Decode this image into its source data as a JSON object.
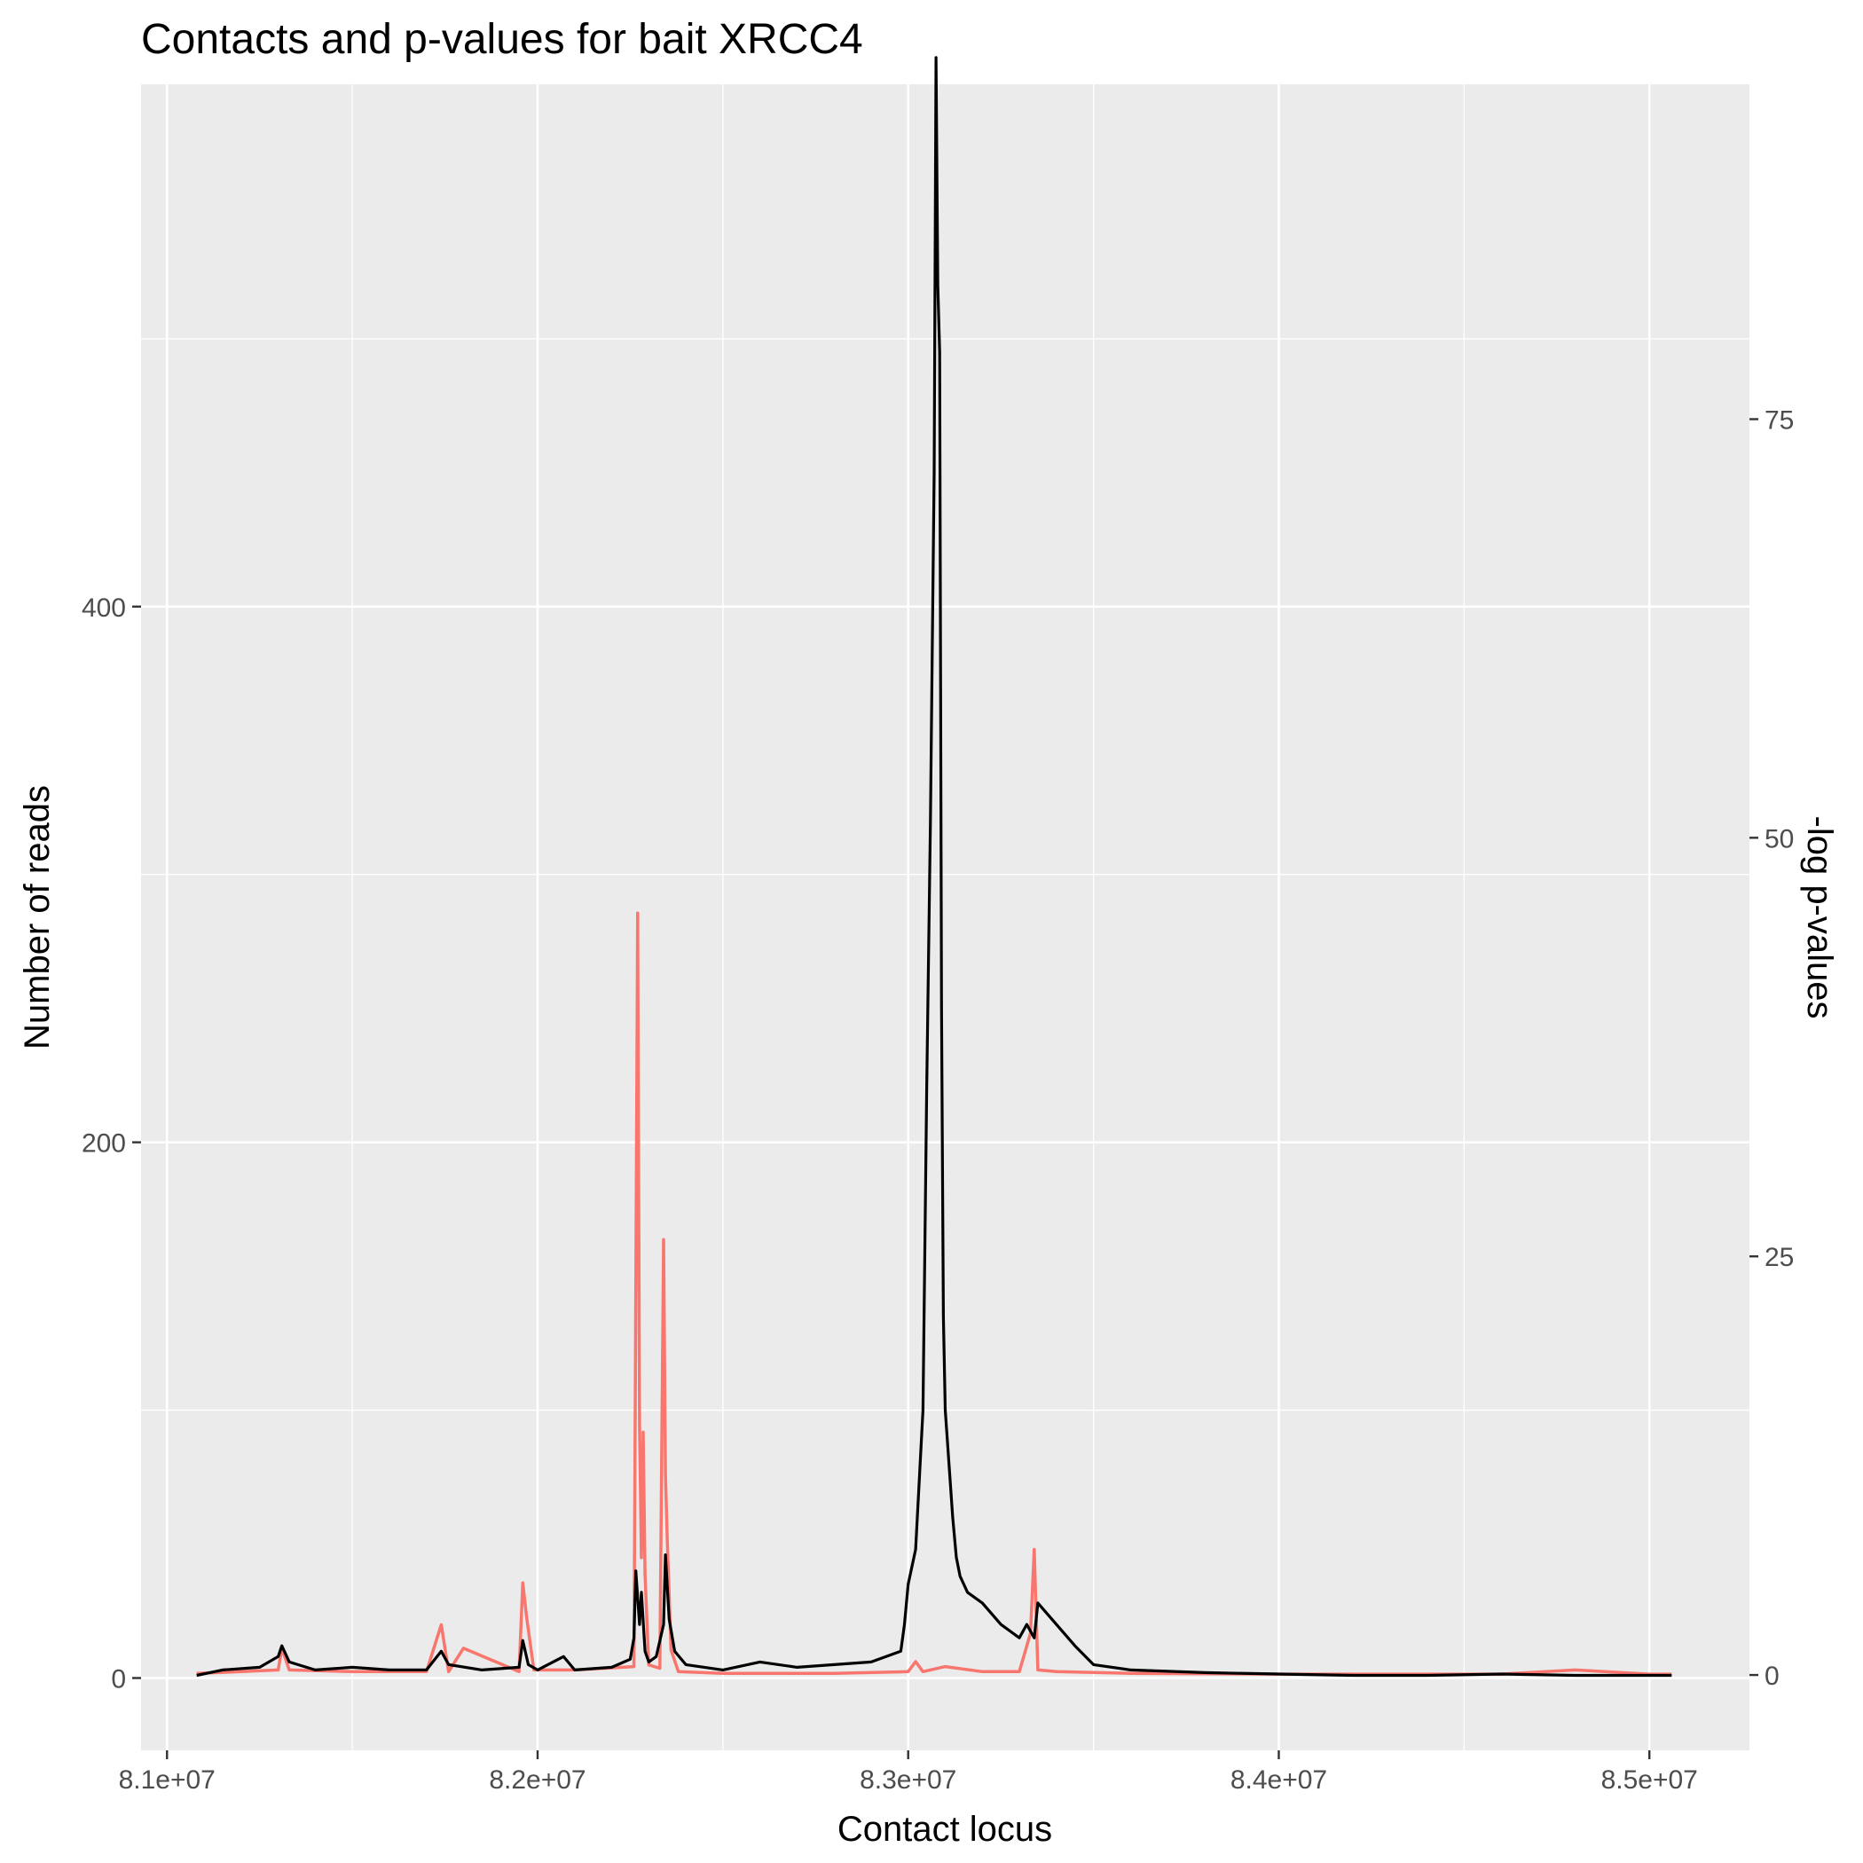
{
  "chart_data": {
    "type": "line",
    "title": "Contacts and p-values for bait XRCC4",
    "xlabel": "Contact locus",
    "ylabel": "Number of reads",
    "y2label": "-log p-values",
    "xlim": [
      80930000,
      85270000
    ],
    "ylim": [
      -27,
      595
    ],
    "y2lim": [
      -4.5,
      95
    ],
    "x_ticks": [
      {
        "value": 81000000,
        "label": "8.1e+07"
      },
      {
        "value": 82000000,
        "label": "8.2e+07"
      },
      {
        "value": 83000000,
        "label": "8.3e+07"
      },
      {
        "value": 84000000,
        "label": "8.4e+07"
      },
      {
        "value": 85000000,
        "label": "8.5e+07"
      }
    ],
    "y_ticks": [
      {
        "value": 0,
        "label": "0"
      },
      {
        "value": 200,
        "label": "200"
      },
      {
        "value": 400,
        "label": "400"
      }
    ],
    "y2_ticks": [
      {
        "value": 0,
        "label": "0"
      },
      {
        "value": 25,
        "label": "25"
      },
      {
        "value": 50,
        "label": "50"
      },
      {
        "value": 75,
        "label": "75"
      }
    ],
    "grid": true,
    "background": "#ebebeb",
    "series": [
      {
        "axis": "right",
        "color": "#f8766d",
        "x": [
          81080000,
          81200000,
          81300000,
          81310000,
          81330000,
          81500000,
          81700000,
          81740000,
          81760000,
          81800000,
          81950000,
          81960000,
          81970000,
          81990000,
          82100000,
          82260000,
          82270000,
          82275000,
          82280000,
          82285000,
          82290000,
          82300000,
          82330000,
          82340000,
          82345000,
          82350000,
          82360000,
          82380000,
          82500000,
          82800000,
          83000000,
          83020000,
          83040000,
          83100000,
          83200000,
          83300000,
          83330000,
          83340000,
          83350000,
          83400000,
          83600000,
          84000000,
          84600000,
          84800000,
          85000000,
          85060000
        ],
        "y": [
          0.1,
          0.2,
          0.3,
          1.6,
          0.3,
          0.2,
          0.2,
          3.0,
          0.2,
          1.6,
          0.2,
          5.5,
          3.5,
          0.3,
          0.3,
          0.5,
          45.5,
          15.0,
          7.0,
          14.5,
          6.0,
          0.6,
          0.4,
          26.0,
          12.0,
          8.0,
          1.5,
          0.2,
          0.1,
          0.1,
          0.2,
          0.8,
          0.2,
          0.5,
          0.2,
          0.2,
          2.5,
          7.5,
          0.3,
          0.2,
          0.1,
          0.05,
          0.05,
          0.3,
          0.05,
          0.05
        ]
      },
      {
        "axis": "left",
        "color": "#000000",
        "x": [
          81080000,
          81150000,
          81250000,
          81300000,
          81310000,
          81330000,
          81400000,
          81500000,
          81600000,
          81700000,
          81740000,
          81760000,
          81850000,
          81950000,
          81960000,
          81975000,
          82000000,
          82070000,
          82100000,
          82200000,
          82250000,
          82260000,
          82265000,
          82275000,
          82280000,
          82290000,
          82300000,
          82320000,
          82340000,
          82345000,
          82355000,
          82370000,
          82400000,
          82500000,
          82600000,
          82700000,
          82800000,
          82900000,
          82980000,
          82990000,
          83000000,
          83020000,
          83040000,
          83050000,
          83060000,
          83070000,
          83075000,
          83080000,
          83085000,
          83090000,
          83095000,
          83100000,
          83110000,
          83120000,
          83130000,
          83140000,
          83160000,
          83200000,
          83250000,
          83300000,
          83320000,
          83340000,
          83350000,
          83400000,
          83450000,
          83500000,
          83600000,
          83800000,
          84000000,
          84200000,
          84400000,
          84600000,
          84800000,
          85000000,
          85060000
        ],
        "y": [
          1,
          3,
          4,
          8,
          12,
          6,
          3,
          4,
          3,
          3,
          10,
          5,
          3,
          4,
          14,
          5,
          3,
          8,
          3,
          4,
          7,
          15,
          40,
          20,
          32,
          10,
          6,
          8,
          20,
          46,
          22,
          10,
          5,
          3,
          6,
          4,
          5,
          6,
          10,
          20,
          35,
          48,
          100,
          220,
          320,
          450,
          605,
          520,
          495,
          250,
          135,
          100,
          80,
          60,
          45,
          38,
          32,
          28,
          20,
          15,
          20,
          15,
          28,
          20,
          12,
          5,
          3,
          2,
          1.5,
          1,
          1,
          1.5,
          1,
          1,
          1
        ]
      }
    ]
  }
}
